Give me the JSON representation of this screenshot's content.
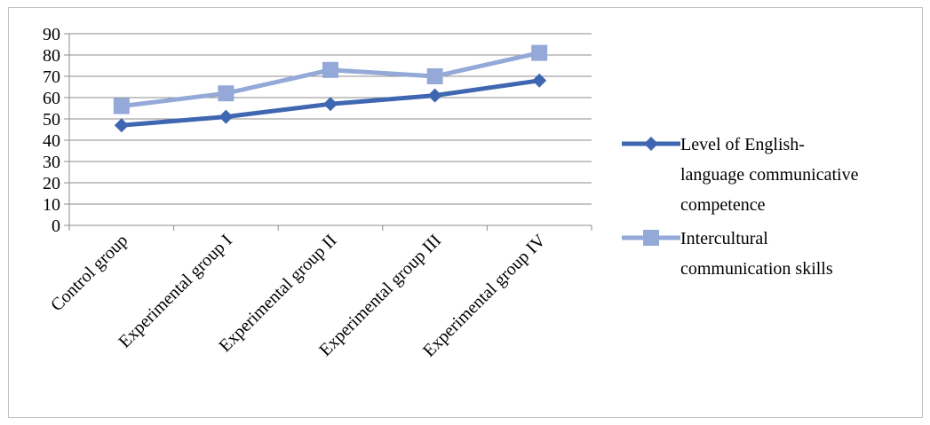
{
  "chart_data": {
    "type": "line",
    "categories": [
      "Control group",
      "Experimental group I",
      "Experimental group II",
      "Experimental group III",
      "Experimental group IV"
    ],
    "series": [
      {
        "name": "Level of English-language communicative competence",
        "legend_lines": [
          "Level of English-",
          "language communicative",
          "competence"
        ],
        "values": [
          47,
          51,
          57,
          61,
          68
        ],
        "color": "#3f67b1",
        "marker": "diamond"
      },
      {
        "name": "Intercultural communication skills",
        "legend_lines": [
          "Intercultural",
          "communication skills"
        ],
        "values": [
          56,
          62,
          73,
          70,
          81
        ],
        "color": "#94a9d8",
        "marker": "square"
      }
    ],
    "ylim": [
      0,
      90
    ],
    "yticks": [
      0,
      10,
      20,
      30,
      40,
      50,
      60,
      70,
      80,
      90
    ],
    "grid": true,
    "legend_position": "right",
    "title": "",
    "xlabel": "",
    "ylabel": ""
  }
}
